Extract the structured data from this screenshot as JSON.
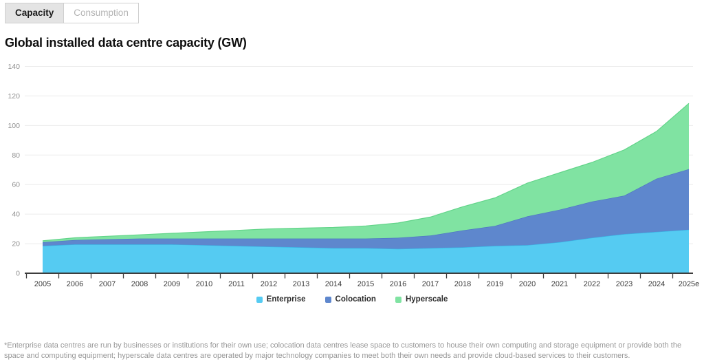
{
  "tabs": [
    {
      "label": "Capacity",
      "active": true
    },
    {
      "label": "Consumption",
      "active": false
    }
  ],
  "title": "Global installed data centre capacity (GW)",
  "chart_data": {
    "type": "area",
    "stacked": true,
    "title": "Global installed data centre capacity (GW)",
    "xlabel": "",
    "ylabel": "GW",
    "grid": true,
    "legend_position": "bottom",
    "ylim": [
      0,
      140
    ],
    "yticks": [
      0,
      20,
      40,
      60,
      80,
      100,
      120,
      140
    ],
    "categories": [
      "2005",
      "2006",
      "2007",
      "2008",
      "2009",
      "2010",
      "2011",
      "2012",
      "2013",
      "2014",
      "2015",
      "2016",
      "2017",
      "2018",
      "2019",
      "2020",
      "2021",
      "2022",
      "2023",
      "2024",
      "2025e"
    ],
    "series": [
      {
        "name": "Enterprise",
        "color": "#55cbf2",
        "stroke": "#35b4e4",
        "values": [
          18.5,
          19.5,
          19.5,
          19.5,
          19.5,
          19,
          18.5,
          18,
          17.5,
          17,
          17,
          16.5,
          17,
          17.5,
          18.5,
          19,
          21,
          24,
          26.5,
          28,
          29.5
        ]
      },
      {
        "name": "Colocation",
        "color": "#5e87cd",
        "stroke": "#4c75c0",
        "values": [
          2.5,
          3,
          3.5,
          4,
          4,
          4.5,
          5,
          5.5,
          6,
          6.5,
          6.5,
          7.5,
          8.5,
          11.5,
          13.5,
          19.5,
          22,
          24.5,
          26,
          36,
          41
        ]
      },
      {
        "name": "Hyperscale",
        "color": "#80e3a2",
        "stroke": "#62d489",
        "values": [
          1,
          1.5,
          2,
          2.5,
          3.5,
          4.5,
          5.5,
          6.5,
          7,
          7.5,
          8.5,
          10,
          12.5,
          16,
          19,
          22.5,
          25,
          26.5,
          31,
          32,
          44.5
        ]
      }
    ]
  },
  "footnote": "*Enterprise data centres are run by businesses or institutions for their own use; colocation data centres lease space to customers to house their own computing and storage equipment or provide both the space and computing equipment; hyperscale data centres are operated by major technology companies to meet both their own needs and provide cloud-based services to their customers.",
  "colors": {
    "axis": "#3d3d3d",
    "gridline": "#ececec",
    "y_label": "#8f8f8f",
    "x_label": "#3b3b3b"
  }
}
